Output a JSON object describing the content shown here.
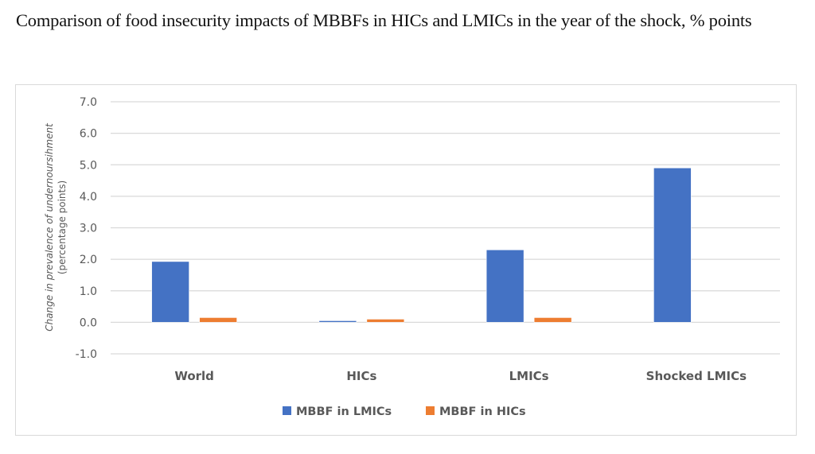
{
  "title": "Comparison of food insecurity impacts of MBBFs in HICs and LMICs in the year of the shock, % points",
  "chart_data": {
    "type": "bar",
    "title": "Comparison of food insecurity impacts of MBBFs in HICs and LMICs in the year of the shock, % points",
    "xlabel": "",
    "ylabel": "Change in prevalence of undernoursihment",
    "ylabel_line2": "(percentage points)",
    "ylim": [
      -1.0,
      7.0
    ],
    "yticks": [
      "7.0",
      "6.0",
      "5.0",
      "4.0",
      "3.0",
      "2.0",
      "1.0",
      "0.0",
      "-1.0"
    ],
    "ytick_values": [
      7,
      6,
      5,
      4,
      3,
      2,
      1,
      0,
      -1
    ],
    "grid": true,
    "legend_position": "bottom",
    "categories": [
      "World",
      "HICs",
      "LMICs",
      "Shocked LMICs"
    ],
    "series": [
      {
        "name": "MBBF in LMICs",
        "color": "#4472C4",
        "values": [
          1.93,
          0.05,
          2.3,
          4.9
        ]
      },
      {
        "name": "MBBF in HICs",
        "color": "#ED7D31",
        "values": [
          0.15,
          0.1,
          0.15,
          0.0
        ]
      }
    ]
  }
}
